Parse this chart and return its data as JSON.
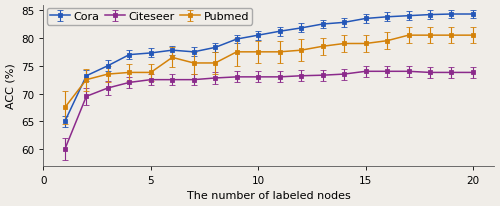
{
  "x": [
    1,
    2,
    3,
    4,
    5,
    6,
    7,
    8,
    9,
    10,
    11,
    12,
    13,
    14,
    15,
    16,
    17,
    18,
    19,
    20
  ],
  "cora_y": [
    65.0,
    73.2,
    75.0,
    77.0,
    77.3,
    77.8,
    77.5,
    78.3,
    79.8,
    80.5,
    81.2,
    81.8,
    82.5,
    82.8,
    83.5,
    83.8,
    84.0,
    84.2,
    84.3,
    84.3
  ],
  "cora_err": [
    1.0,
    1.0,
    1.0,
    0.8,
    0.8,
    0.8,
    0.8,
    0.8,
    0.8,
    0.8,
    0.8,
    0.8,
    0.8,
    0.8,
    0.8,
    0.8,
    0.8,
    0.8,
    0.8,
    0.8
  ],
  "citeseer_y": [
    60.0,
    69.5,
    71.0,
    72.0,
    72.5,
    72.5,
    72.5,
    72.8,
    73.0,
    73.0,
    73.0,
    73.2,
    73.3,
    73.5,
    74.0,
    74.0,
    74.0,
    73.8,
    73.8,
    73.8
  ],
  "citeseer_err": [
    2.0,
    1.5,
    1.2,
    1.0,
    1.0,
    1.0,
    1.0,
    1.0,
    1.0,
    1.0,
    1.0,
    1.0,
    1.0,
    1.0,
    1.0,
    1.0,
    1.0,
    1.0,
    1.0,
    1.0
  ],
  "pubmed_y": [
    67.5,
    72.5,
    73.5,
    73.8,
    73.8,
    76.5,
    75.5,
    75.5,
    77.5,
    77.5,
    77.5,
    77.8,
    78.5,
    79.0,
    79.0,
    79.5,
    80.5,
    80.5,
    80.5,
    80.5
  ],
  "pubmed_err": [
    3.0,
    2.0,
    1.5,
    1.5,
    1.5,
    1.8,
    2.0,
    2.0,
    2.5,
    2.0,
    2.0,
    2.0,
    1.5,
    1.5,
    1.5,
    1.5,
    1.5,
    1.5,
    1.5,
    1.5
  ],
  "cora_color": "#2457b8",
  "citeseer_color": "#8b2a8b",
  "pubmed_color": "#d4820a",
  "bg_color": "#f0ede8",
  "xlabel": "The number of labeled nodes",
  "ylabel": "ACC (%)",
  "ylim": [
    57,
    86
  ],
  "xlim": [
    0,
    21
  ],
  "yticks": [
    60,
    65,
    70,
    75,
    80,
    85
  ],
  "xticks": [
    0,
    5,
    10,
    15,
    20
  ],
  "legend_labels": [
    "Cora",
    "Citeseer",
    "Pubmed"
  ],
  "axis_fontsize": 8,
  "tick_fontsize": 7.5,
  "legend_fontsize": 8
}
